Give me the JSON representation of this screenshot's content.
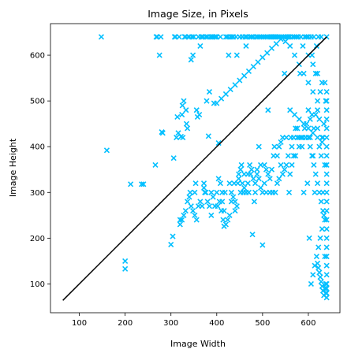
{
  "chart_data": {
    "type": "scatter",
    "title": "Image Size, in Pixels",
    "xlabel": "Image Width",
    "ylabel": "Image Height",
    "xlim": [
      37,
      669
    ],
    "ylim": [
      37,
      669
    ],
    "xticks": [
      100,
      200,
      300,
      400,
      500,
      600
    ],
    "yticks": [
      100,
      200,
      300,
      400,
      500,
      600
    ],
    "grid": false,
    "marker": "x",
    "colors": {
      "points": "#00BFFF",
      "reference_line": "#000000"
    },
    "reference_line": {
      "from": [
        64,
        64
      ],
      "to": [
        640,
        640
      ]
    },
    "points": [
      [
        148,
        640
      ],
      [
        160,
        392
      ],
      [
        200,
        150
      ],
      [
        200,
        133
      ],
      [
        212,
        318
      ],
      [
        236,
        318
      ],
      [
        240,
        318
      ],
      [
        266,
        360
      ],
      [
        268,
        640
      ],
      [
        270,
        640
      ],
      [
        275,
        600
      ],
      [
        278,
        640
      ],
      [
        280,
        432
      ],
      [
        282,
        430
      ],
      [
        300,
        186
      ],
      [
        304,
        204
      ],
      [
        306,
        375
      ],
      [
        308,
        640
      ],
      [
        310,
        640
      ],
      [
        312,
        420
      ],
      [
        314,
        465
      ],
      [
        316,
        430
      ],
      [
        318,
        640
      ],
      [
        320,
        240
      ],
      [
        322,
        422
      ],
      [
        324,
        470
      ],
      [
        325,
        490
      ],
      [
        326,
        420
      ],
      [
        328,
        500
      ],
      [
        330,
        640
      ],
      [
        332,
        640
      ],
      [
        333,
        480
      ],
      [
        334,
        450
      ],
      [
        336,
        440
      ],
      [
        338,
        640
      ],
      [
        340,
        640
      ],
      [
        342,
        300
      ],
      [
        344,
        590
      ],
      [
        346,
        640
      ],
      [
        348,
        600
      ],
      [
        350,
        640
      ],
      [
        352,
        300
      ],
      [
        354,
        320
      ],
      [
        356,
        480
      ],
      [
        358,
        465
      ],
      [
        360,
        640
      ],
      [
        362,
        470
      ],
      [
        364,
        620
      ],
      [
        366,
        640
      ],
      [
        368,
        640
      ],
      [
        370,
        640
      ],
      [
        372,
        310
      ],
      [
        374,
        300
      ],
      [
        376,
        640
      ],
      [
        378,
        500
      ],
      [
        380,
        640
      ],
      [
        382,
        423
      ],
      [
        384,
        520
      ],
      [
        386,
        640
      ],
      [
        388,
        300
      ],
      [
        390,
        640
      ],
      [
        392,
        640
      ],
      [
        394,
        495
      ],
      [
        396,
        640
      ],
      [
        398,
        640
      ],
      [
        400,
        640
      ],
      [
        402,
        270
      ],
      [
        404,
        408
      ],
      [
        406,
        280
      ],
      [
        408,
        640
      ],
      [
        410,
        260
      ],
      [
        412,
        280
      ],
      [
        414,
        240
      ],
      [
        416,
        226
      ],
      [
        418,
        300
      ],
      [
        420,
        640
      ],
      [
        424,
        640
      ],
      [
        426,
        600
      ],
      [
        428,
        320
      ],
      [
        430,
        640
      ],
      [
        432,
        300
      ],
      [
        434,
        640
      ],
      [
        436,
        640
      ],
      [
        438,
        320
      ],
      [
        440,
        280
      ],
      [
        442,
        640
      ],
      [
        444,
        600
      ],
      [
        446,
        320
      ],
      [
        448,
        340
      ],
      [
        450,
        640
      ],
      [
        452,
        350
      ],
      [
        454,
        360
      ],
      [
        456,
        640
      ],
      [
        458,
        300
      ],
      [
        460,
        340
      ],
      [
        462,
        640
      ],
      [
        464,
        620
      ],
      [
        466,
        640
      ],
      [
        468,
        340
      ],
      [
        470,
        300
      ],
      [
        472,
        640
      ],
      [
        474,
        340
      ],
      [
        476,
        640
      ],
      [
        478,
        208
      ],
      [
        480,
        640
      ],
      [
        482,
        280
      ],
      [
        484,
        300
      ],
      [
        486,
        640
      ],
      [
        488,
        340
      ],
      [
        490,
        640
      ],
      [
        492,
        400
      ],
      [
        494,
        640
      ],
      [
        496,
        360
      ],
      [
        498,
        640
      ],
      [
        500,
        185
      ],
      [
        502,
        640
      ],
      [
        504,
        360
      ],
      [
        506,
        640
      ],
      [
        508,
        300
      ],
      [
        510,
        640
      ],
      [
        512,
        480
      ],
      [
        514,
        640
      ],
      [
        516,
        300
      ],
      [
        518,
        640
      ],
      [
        520,
        640
      ],
      [
        522,
        300
      ],
      [
        524,
        640
      ],
      [
        526,
        400
      ],
      [
        528,
        640
      ],
      [
        530,
        640
      ],
      [
        532,
        380
      ],
      [
        534,
        640
      ],
      [
        536,
        400
      ],
      [
        538,
        640
      ],
      [
        540,
        410
      ],
      [
        542,
        640
      ],
      [
        544,
        420
      ],
      [
        546,
        640
      ],
      [
        548,
        560
      ],
      [
        550,
        640
      ],
      [
        552,
        420
      ],
      [
        554,
        640
      ],
      [
        556,
        640
      ],
      [
        558,
        300
      ],
      [
        560,
        640
      ],
      [
        562,
        420
      ],
      [
        564,
        400
      ],
      [
        566,
        640
      ],
      [
        568,
        380
      ],
      [
        570,
        640
      ],
      [
        572,
        440
      ],
      [
        574,
        640
      ],
      [
        576,
        420
      ],
      [
        578,
        640
      ],
      [
        580,
        420
      ],
      [
        582,
        560
      ],
      [
        584,
        640
      ],
      [
        586,
        400
      ],
      [
        588,
        620
      ],
      [
        590,
        300
      ],
      [
        592,
        640
      ],
      [
        594,
        420
      ],
      [
        596,
        640
      ],
      [
        598,
        320
      ],
      [
        600,
        640
      ],
      [
        602,
        200
      ],
      [
        604,
        420
      ],
      [
        606,
        640
      ],
      [
        608,
        600
      ],
      [
        610,
        380
      ],
      [
        612,
        640
      ],
      [
        614,
        300
      ],
      [
        616,
        560
      ],
      [
        618,
        620
      ],
      [
        620,
        440
      ],
      [
        622,
        640
      ],
      [
        624,
        400
      ],
      [
        626,
        520
      ],
      [
        628,
        640
      ],
      [
        630,
        420
      ],
      [
        632,
        300
      ],
      [
        634,
        450
      ],
      [
        636,
        540
      ],
      [
        638,
        500
      ],
      [
        640,
        200
      ],
      [
        640,
        120
      ],
      [
        640,
        70
      ],
      [
        640,
        640
      ],
      [
        638,
        80
      ],
      [
        636,
        160
      ],
      [
        634,
        250
      ],
      [
        636,
        360
      ],
      [
        632,
        420
      ],
      [
        628,
        380
      ],
      [
        624,
        460
      ],
      [
        620,
        480
      ],
      [
        616,
        470
      ],
      [
        612,
        440
      ],
      [
        608,
        470
      ],
      [
        604,
        460
      ],
      [
        600,
        480
      ],
      [
        596,
        450
      ],
      [
        592,
        440
      ],
      [
        588,
        420
      ],
      [
        584,
        420
      ],
      [
        580,
        400
      ],
      [
        576,
        440
      ],
      [
        572,
        380
      ],
      [
        568,
        420
      ],
      [
        564,
        360
      ],
      [
        560,
        340
      ],
      [
        556,
        380
      ],
      [
        552,
        360
      ],
      [
        548,
        350
      ],
      [
        544,
        340
      ],
      [
        540,
        360
      ],
      [
        536,
        330
      ],
      [
        532,
        320
      ],
      [
        528,
        300
      ],
      [
        524,
        380
      ],
      [
        520,
        350
      ],
      [
        516,
        330
      ],
      [
        512,
        340
      ],
      [
        508,
        350
      ],
      [
        504,
        320
      ],
      [
        500,
        300
      ],
      [
        496,
        310
      ],
      [
        492,
        330
      ],
      [
        488,
        350
      ],
      [
        484,
        320
      ],
      [
        480,
        330
      ],
      [
        476,
        350
      ],
      [
        472,
        360
      ],
      [
        468,
        320
      ],
      [
        464,
        300
      ],
      [
        460,
        310
      ],
      [
        456,
        320
      ],
      [
        452,
        300
      ],
      [
        448,
        330
      ],
      [
        444,
        270
      ],
      [
        440,
        260
      ],
      [
        436,
        290
      ],
      [
        432,
        280
      ],
      [
        428,
        250
      ],
      [
        424,
        240
      ],
      [
        420,
        230
      ],
      [
        416,
        260
      ],
      [
        412,
        300
      ],
      [
        408,
        320
      ],
      [
        404,
        330
      ],
      [
        400,
        300
      ],
      [
        396,
        270
      ],
      [
        392,
        290
      ],
      [
        388,
        250
      ],
      [
        384,
        270
      ],
      [
        380,
        280
      ],
      [
        376,
        300
      ],
      [
        372,
        320
      ],
      [
        368,
        270
      ],
      [
        364,
        280
      ],
      [
        360,
        270
      ],
      [
        356,
        240
      ],
      [
        352,
        250
      ],
      [
        348,
        260
      ],
      [
        344,
        270
      ],
      [
        340,
        290
      ],
      [
        336,
        280
      ],
      [
        332,
        260
      ],
      [
        328,
        250
      ],
      [
        324,
        240
      ],
      [
        320,
        230
      ],
      [
        600,
        420
      ],
      [
        604,
        400
      ],
      [
        608,
        380
      ],
      [
        612,
        360
      ],
      [
        616,
        340
      ],
      [
        620,
        320
      ],
      [
        624,
        300
      ],
      [
        628,
        280
      ],
      [
        632,
        260
      ],
      [
        636,
        240
      ],
      [
        630,
        220
      ],
      [
        626,
        200
      ],
      [
        622,
        180
      ],
      [
        618,
        160
      ],
      [
        614,
        140
      ],
      [
        610,
        120
      ],
      [
        606,
        100
      ],
      [
        638,
        100
      ],
      [
        636,
        90
      ],
      [
        634,
        75
      ],
      [
        632,
        85
      ],
      [
        630,
        95
      ],
      [
        628,
        105
      ],
      [
        626,
        115
      ],
      [
        624,
        125
      ],
      [
        622,
        135
      ],
      [
        620,
        145
      ],
      [
        560,
        480
      ],
      [
        570,
        470
      ],
      [
        580,
        460
      ],
      [
        590,
        450
      ],
      [
        600,
        440
      ],
      [
        610,
        430
      ],
      [
        620,
        420
      ],
      [
        630,
        410
      ],
      [
        640,
        400
      ],
      [
        640,
        380
      ],
      [
        640,
        360
      ],
      [
        640,
        340
      ],
      [
        640,
        320
      ],
      [
        640,
        300
      ],
      [
        640,
        280
      ],
      [
        640,
        260
      ],
      [
        640,
        240
      ],
      [
        640,
        220
      ],
      [
        640,
        180
      ],
      [
        640,
        160
      ],
      [
        640,
        140
      ],
      [
        640,
        100
      ],
      [
        640,
        90
      ],
      [
        640,
        80
      ],
      [
        600,
        600
      ],
      [
        610,
        580
      ],
      [
        620,
        560
      ],
      [
        630,
        540
      ],
      [
        640,
        520
      ],
      [
        640,
        500
      ],
      [
        640,
        480
      ],
      [
        640,
        460
      ],
      [
        640,
        440
      ],
      [
        640,
        420
      ],
      [
        620,
        500
      ],
      [
        610,
        520
      ],
      [
        600,
        540
      ],
      [
        590,
        560
      ],
      [
        580,
        580
      ],
      [
        570,
        600
      ],
      [
        560,
        620
      ],
      [
        550,
        630
      ],
      [
        540,
        635
      ],
      [
        530,
        625
      ],
      [
        520,
        615
      ],
      [
        510,
        605
      ],
      [
        500,
        595
      ],
      [
        490,
        585
      ],
      [
        480,
        575
      ],
      [
        470,
        565
      ],
      [
        460,
        555
      ],
      [
        450,
        545
      ],
      [
        440,
        535
      ],
      [
        430,
        525
      ],
      [
        420,
        515
      ],
      [
        410,
        505
      ],
      [
        400,
        495
      ]
    ]
  }
}
